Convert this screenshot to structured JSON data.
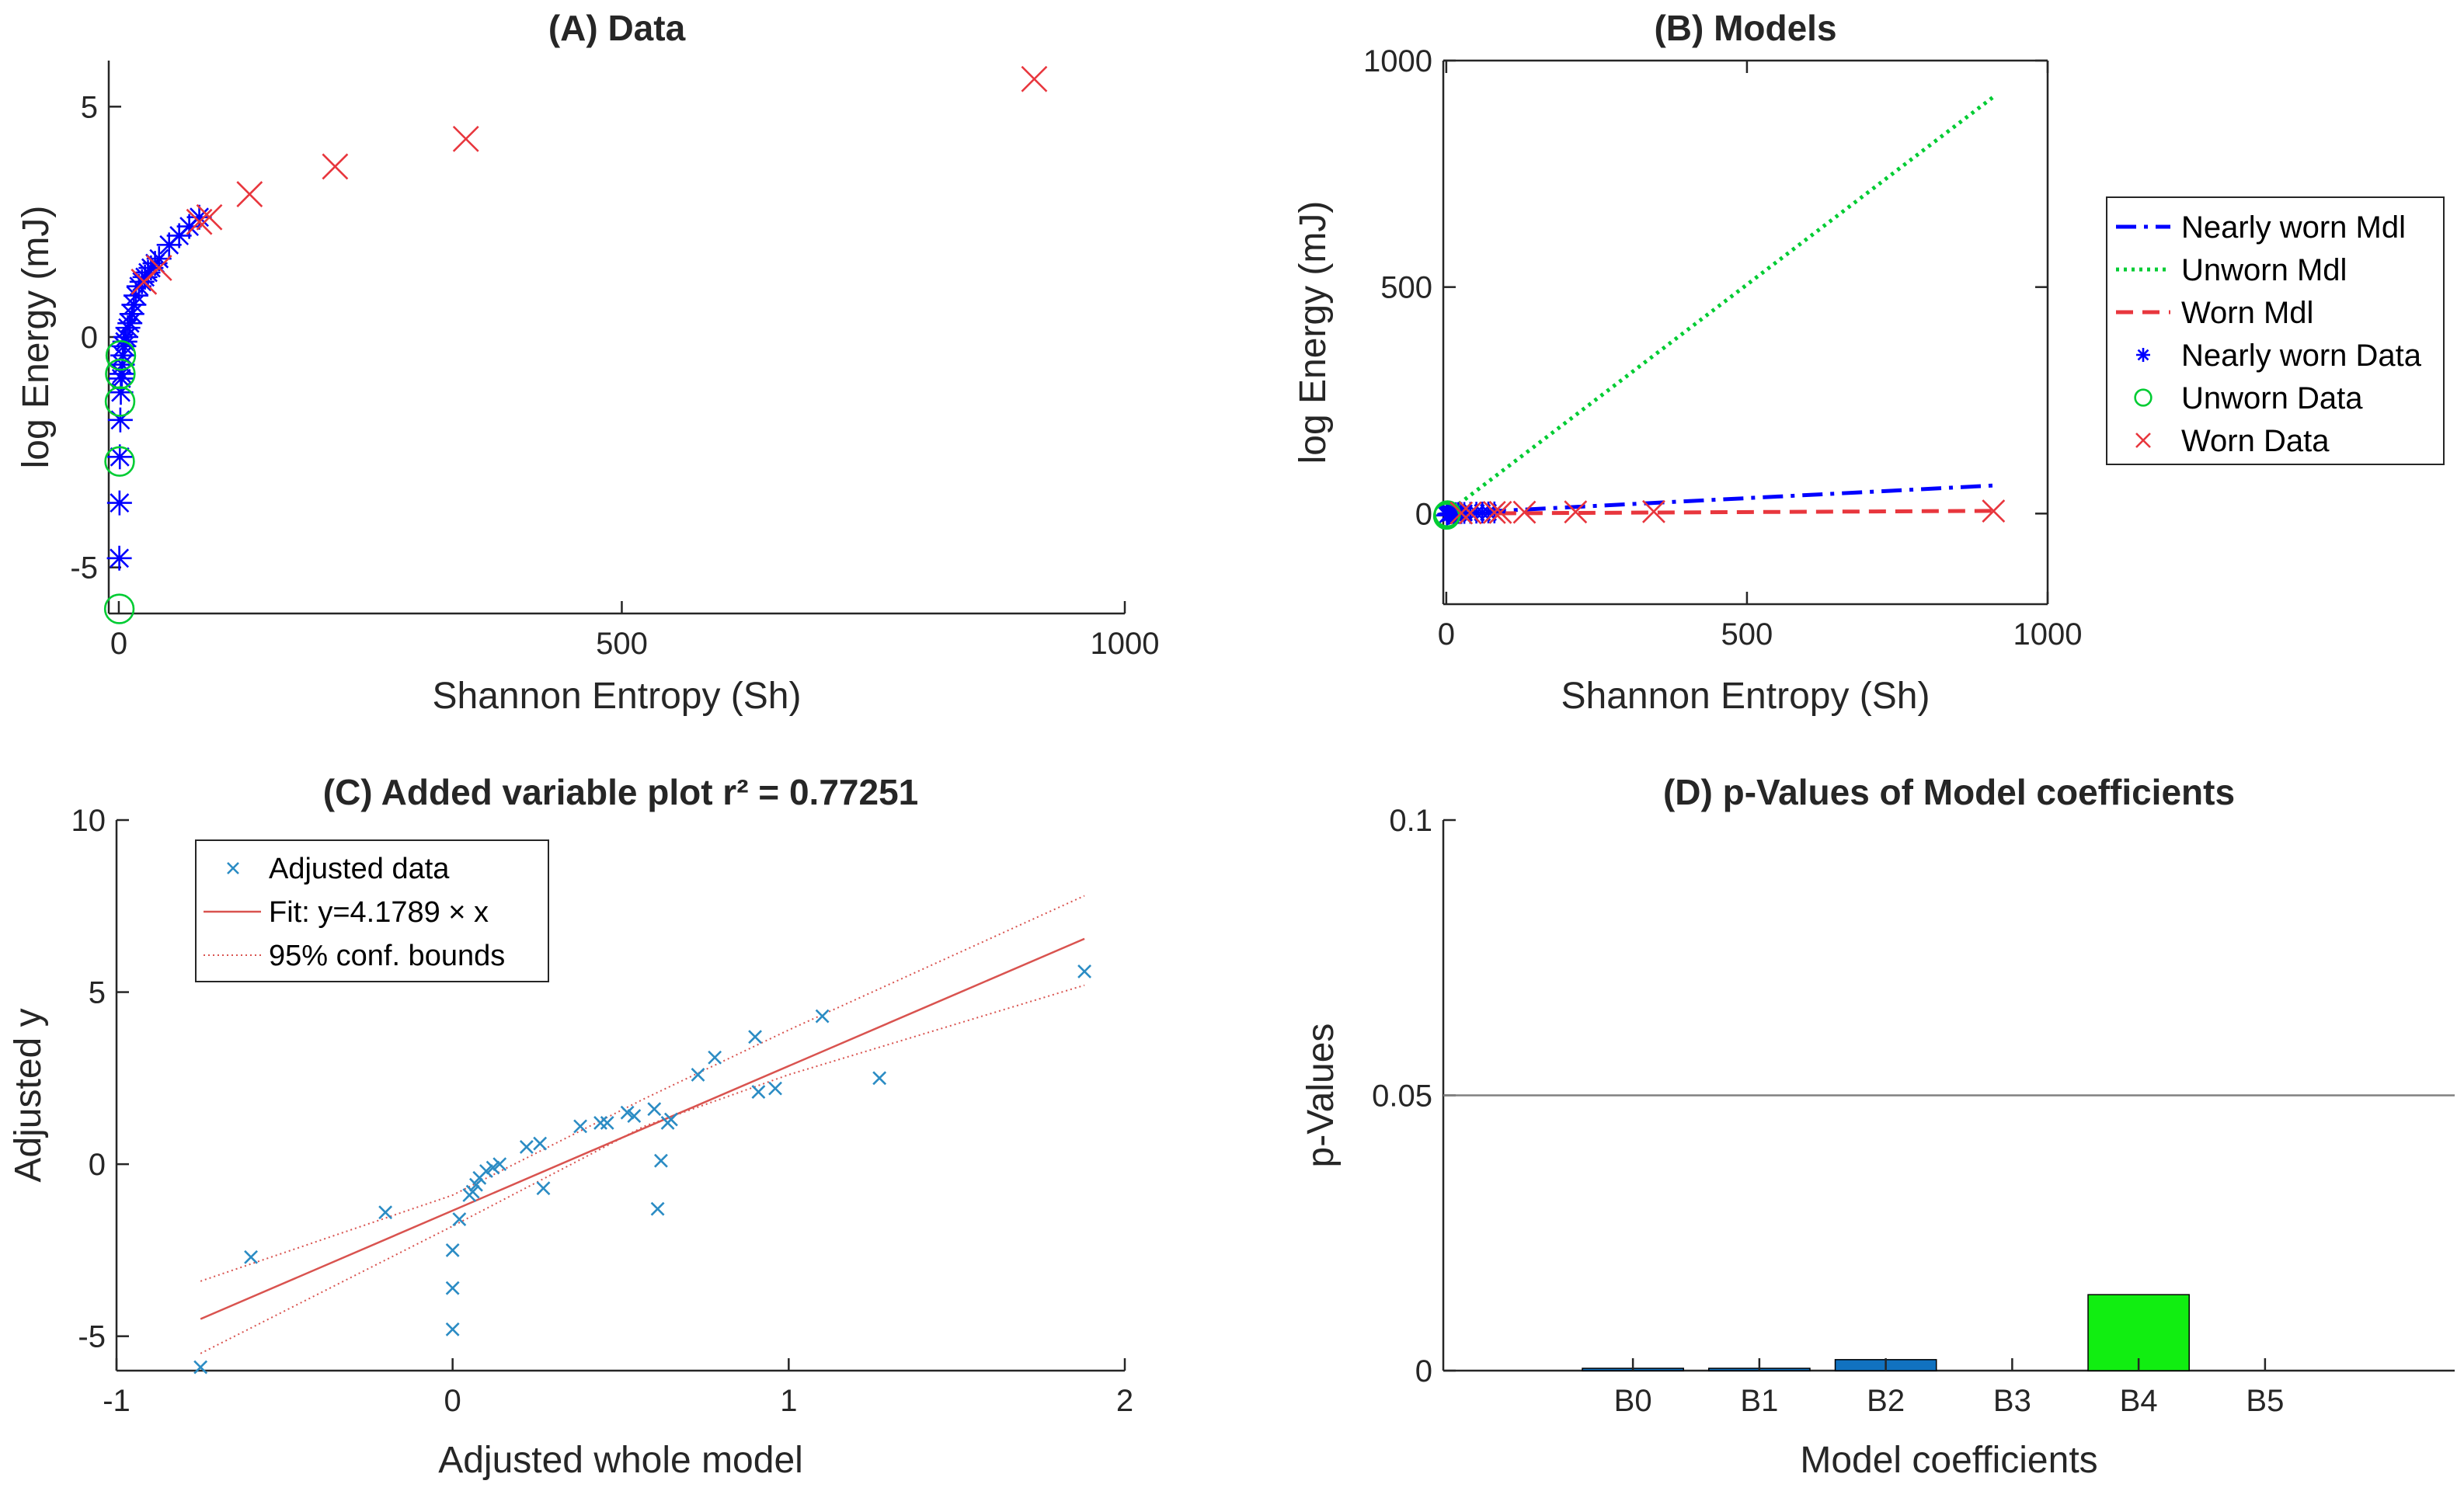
{
  "colors": {
    "nearly_worn": "#0000ff",
    "unworn": "#00cc33",
    "worn": "#e8363d",
    "adjusted": "#2b8cc4",
    "fit": "#d9534f",
    "bar_blue": "#1172c0",
    "bar_green": "#11ee11",
    "axis": "#262626",
    "threshold": "#808080"
  },
  "chart_data": [
    {
      "panel": "A",
      "type": "scatter",
      "title": "(A) Data",
      "xlabel": "Shannon Entropy (Sh)",
      "ylabel": "log Energy (mJ)",
      "xlim": [
        -10,
        1000
      ],
      "ylim": [
        -6,
        6
      ],
      "xticks": [
        0,
        500,
        1000
      ],
      "yticks": [
        -5,
        0,
        5
      ],
      "ytick_labels": [
        "-5",
        "0",
        "5"
      ],
      "grid": false,
      "series": [
        {
          "marker": "asterisk",
          "color_key": "nearly_worn",
          "x": [
            0.5,
            0.7,
            1,
            1.5,
            2,
            2.5,
            3,
            3.5,
            4,
            5,
            6,
            7,
            9,
            11,
            13,
            15,
            17,
            20,
            23,
            26,
            29,
            32,
            36,
            40,
            50,
            60,
            70,
            80
          ],
          "y": [
            -4.8,
            -3.6,
            -2.6,
            -1.8,
            -1.2,
            -0.9,
            -0.8,
            -0.6,
            -0.4,
            -0.2,
            -0.1,
            0,
            0.2,
            0.3,
            0.5,
            0.7,
            0.9,
            1.1,
            1.2,
            1.3,
            1.4,
            1.5,
            1.6,
            1.7,
            2.0,
            2.2,
            2.4,
            2.6
          ]
        },
        {
          "marker": "circle",
          "color_key": "unworn",
          "x": [
            0.5,
            0.8,
            1.2,
            1.5,
            2
          ],
          "y": [
            -5.9,
            -2.7,
            -1.4,
            -0.8,
            -0.4
          ]
        },
        {
          "marker": "x",
          "color_key": "worn",
          "x": [
            25,
            40,
            80,
            90,
            130,
            215,
            345,
            910
          ],
          "y": [
            1.2,
            1.5,
            2.5,
            2.6,
            3.1,
            3.7,
            4.3,
            5.6
          ]
        }
      ]
    },
    {
      "panel": "B",
      "type": "line",
      "title": "(B) Models",
      "xlabel": "Shannon Entropy (Sh)",
      "ylabel": "log Energy (mJ)",
      "xlim": [
        -5,
        1000
      ],
      "ylim": [
        -200,
        1000
      ],
      "xticks": [
        0,
        500,
        1000
      ],
      "yticks": [
        0,
        500,
        1000
      ],
      "grid": false,
      "legend_position": "right",
      "legend": [
        {
          "label": "Nearly worn Mdl",
          "type": "line",
          "color_key": "nearly_worn",
          "dash": "dashdot"
        },
        {
          "label": "Unworn Mdl",
          "type": "line",
          "color_key": "unworn",
          "dash": "dotted"
        },
        {
          "label": "Worn Mdl",
          "type": "line",
          "color_key": "worn",
          "dash": "dashed"
        },
        {
          "label": "Nearly worn Data",
          "type": "marker",
          "color_key": "nearly_worn",
          "marker": "asterisk"
        },
        {
          "label": "Unworn Data",
          "type": "marker",
          "color_key": "unworn",
          "marker": "circle"
        },
        {
          "label": "Worn Data",
          "type": "marker",
          "color_key": "worn",
          "marker": "x"
        }
      ],
      "series": [
        {
          "kind": "line",
          "color_key": "nearly_worn",
          "dash": "dashdot",
          "x": [
            0,
            910
          ],
          "y": [
            0,
            62
          ]
        },
        {
          "kind": "line",
          "color_key": "unworn",
          "dash": "dotted",
          "x": [
            0,
            910
          ],
          "y": [
            0,
            920
          ]
        },
        {
          "kind": "line",
          "color_key": "worn",
          "dash": "dashed",
          "x": [
            0,
            910
          ],
          "y": [
            0,
            6
          ]
        },
        {
          "kind": "scatter",
          "marker": "asterisk",
          "color_key": "nearly_worn",
          "x": [
            1,
            3,
            5,
            8,
            12,
            16,
            20,
            25,
            30,
            40,
            50,
            60,
            70,
            80
          ],
          "y": [
            -4,
            -1,
            0,
            0.5,
            0.8,
            1,
            1.2,
            1.3,
            1.5,
            1.7,
            2,
            2.2,
            2.4,
            2.6
          ]
        },
        {
          "kind": "scatter",
          "marker": "circle",
          "color_key": "unworn",
          "x": [
            0.5,
            1,
            1.5,
            2
          ],
          "y": [
            -5.9,
            -2.7,
            -1.4,
            -0.5
          ]
        },
        {
          "kind": "scatter",
          "marker": "x",
          "color_key": "worn",
          "x": [
            25,
            40,
            80,
            90,
            130,
            215,
            345,
            910
          ],
          "y": [
            1.2,
            1.5,
            2.5,
            2.6,
            3.1,
            3.7,
            4.3,
            5.6
          ]
        }
      ]
    },
    {
      "panel": "C",
      "type": "scatter",
      "title": "(C) Added variable plot r² = 0.77251",
      "xlabel": "Adjusted whole model",
      "ylabel": "Adjusted y",
      "xlim": [
        -1,
        2
      ],
      "ylim": [
        -6,
        10
      ],
      "xticks": [
        -1,
        0,
        1,
        2
      ],
      "xtick_labels": [
        "-1",
        "0",
        "1",
        "2"
      ],
      "yticks": [
        -5,
        0,
        5,
        10
      ],
      "ytick_labels": [
        "-5",
        "0",
        "5",
        "10"
      ],
      "grid": false,
      "legend_position": "top-left",
      "legend": [
        {
          "label": "Adjusted data",
          "type": "marker",
          "color_key": "adjusted"
        },
        {
          "label": "Fit: y=4.1789 × x",
          "type": "line",
          "color_key": "fit"
        },
        {
          "label": "95% conf. bounds",
          "type": "dotted",
          "color_key": "fit"
        }
      ],
      "fit_slope": 4.1789,
      "points": {
        "x": [
          -0.75,
          -0.6,
          -0.2,
          0.0,
          0.0,
          0.0,
          0.02,
          0.05,
          0.06,
          0.07,
          0.08,
          0.1,
          0.12,
          0.14,
          0.22,
          0.26,
          0.27,
          0.38,
          0.44,
          0.46,
          0.52,
          0.54,
          0.6,
          0.61,
          0.62,
          0.64,
          0.65,
          0.73,
          0.78,
          0.9,
          0.91,
          0.96,
          1.1,
          1.27,
          1.88
        ],
        "y": [
          -5.9,
          -2.7,
          -1.4,
          -4.8,
          -3.6,
          -2.5,
          -1.6,
          -0.9,
          -0.8,
          -0.6,
          -0.4,
          -0.2,
          -0.1,
          0.0,
          0.5,
          0.6,
          -0.7,
          1.1,
          1.2,
          1.2,
          1.5,
          1.4,
          1.6,
          -1.3,
          0.1,
          1.2,
          1.3,
          2.6,
          3.1,
          3.7,
          2.1,
          2.2,
          4.3,
          2.5,
          5.6
        ]
      },
      "fit_line": {
        "x": [
          -0.75,
          1.88
        ],
        "y": [
          -4.5,
          6.55
        ]
      },
      "conf_upper": {
        "x": [
          -0.75,
          0.0,
          0.57,
          1.0,
          1.88
        ],
        "y": [
          -3.4,
          -0.9,
          1.9,
          3.9,
          7.8
        ]
      },
      "conf_lower": {
        "x": [
          -0.75,
          0.0,
          0.57,
          1.0,
          1.88
        ],
        "y": [
          -5.5,
          -1.8,
          1.1,
          2.6,
          5.2
        ]
      }
    },
    {
      "panel": "D",
      "type": "bar",
      "title": "(D) p-Values of Model coefficients",
      "xlabel": "Model coefficients",
      "ylabel": "p-Values",
      "categories": [
        "B0",
        "B1",
        "B2",
        "B3",
        "B4",
        "B5"
      ],
      "values": [
        0.0004,
        0.0002,
        0.002,
        0.0,
        0.0138,
        0.0
      ],
      "bar_color_keys": [
        "bar_blue",
        "bar_blue",
        "bar_blue",
        "bar_blue",
        "bar_green",
        "bar_blue"
      ],
      "ylim": [
        0,
        0.1
      ],
      "yticks": [
        0,
        0.05,
        0.1
      ],
      "ytick_labels": [
        "0",
        "0.05",
        "0.1"
      ],
      "threshold": 0.05,
      "grid": false
    }
  ]
}
